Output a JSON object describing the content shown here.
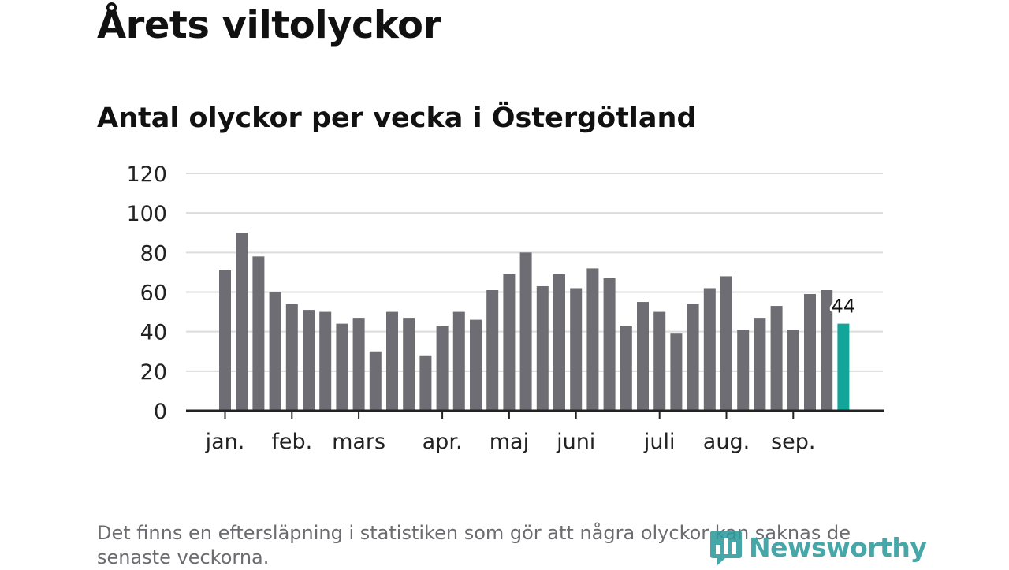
{
  "title": "Årets viltolyckor",
  "subtitle": "Antal olyckor per vecka i Östergötland",
  "footnote": "Det finns en eftersläpning i statistiken som gör att några olyckor kan saknas de senaste veckorna.",
  "brand": {
    "name": "Newsworthy",
    "color": "#2e9a9c",
    "icon": "bar-chart-bubble-icon"
  },
  "colors": {
    "bar": "#6e6d73",
    "highlight": "#13a49a",
    "grid": "#dcdcdc",
    "axis": "#222222"
  },
  "chart_data": {
    "type": "bar",
    "title": "Antal olyckor per vecka i Östergötland",
    "xlabel": "",
    "ylabel": "",
    "ylim": [
      0,
      120
    ],
    "yticks": [
      0,
      20,
      40,
      60,
      80,
      100,
      120
    ],
    "grid": true,
    "month_labels": [
      {
        "label": "jan.",
        "week": 1
      },
      {
        "label": "feb.",
        "week": 5
      },
      {
        "label": "mars",
        "week": 9
      },
      {
        "label": "apr.",
        "week": 14
      },
      {
        "label": "maj",
        "week": 18
      },
      {
        "label": "juni",
        "week": 22
      },
      {
        "label": "juli",
        "week": 27
      },
      {
        "label": "aug.",
        "week": 31
      },
      {
        "label": "sep.",
        "week": 35
      }
    ],
    "weeks": [
      1,
      2,
      3,
      4,
      5,
      6,
      7,
      8,
      9,
      10,
      11,
      12,
      13,
      14,
      15,
      16,
      17,
      18,
      19,
      20,
      21,
      22,
      23,
      24,
      25,
      26,
      27,
      28,
      29,
      30,
      31,
      32,
      33,
      34,
      35,
      36,
      37,
      38
    ],
    "values": [
      71,
      90,
      78,
      60,
      54,
      51,
      50,
      44,
      47,
      30,
      50,
      47,
      28,
      43,
      50,
      46,
      61,
      69,
      80,
      63,
      69,
      62,
      72,
      67,
      43,
      55,
      50,
      39,
      54,
      62,
      68,
      41,
      47,
      53,
      41,
      59,
      61,
      44
    ],
    "highlight_last": true,
    "last_label": "44"
  }
}
